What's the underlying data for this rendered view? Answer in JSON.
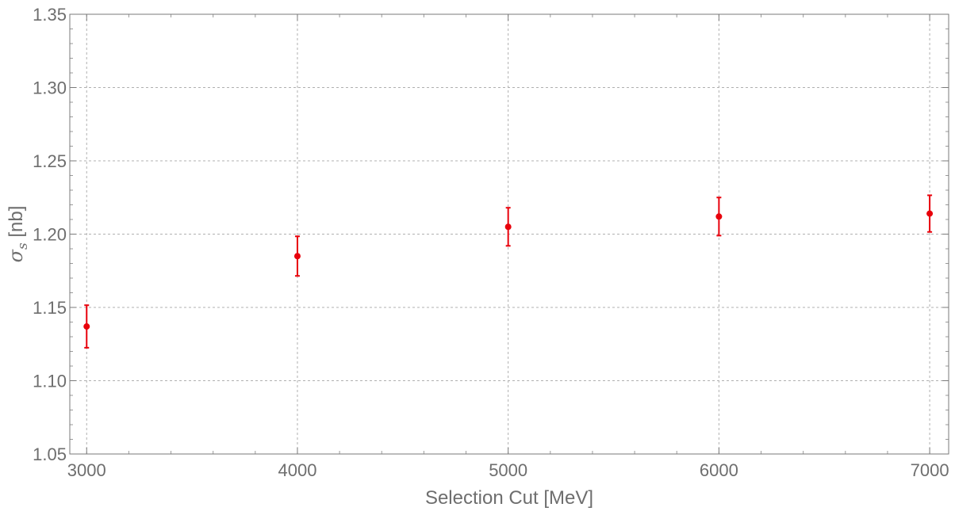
{
  "chart_data": {
    "type": "scatter",
    "title": "",
    "xlabel": "Selection Cut [MeV]",
    "ylabel": "σs [nb]",
    "ylabel_parts": {
      "symbol": "σ",
      "subscript": "s",
      "unit": " [nb]"
    },
    "xlim": [
      2920,
      7090
    ],
    "ylim": [
      1.05,
      1.35
    ],
    "x_ticks": [
      3000,
      4000,
      5000,
      6000,
      7000
    ],
    "x_tick_labels": [
      "3000",
      "4000",
      "5000",
      "6000",
      "7000"
    ],
    "y_ticks": [
      1.05,
      1.1,
      1.15,
      1.2,
      1.25,
      1.3,
      1.35
    ],
    "y_tick_labels": [
      "1.05",
      "1.10",
      "1.15",
      "1.20",
      "1.25",
      "1.30",
      "1.35"
    ],
    "grid": true,
    "series": [
      {
        "color": "#e8000b",
        "points": [
          {
            "x": 3000,
            "y": 1.137,
            "err": 0.0145
          },
          {
            "x": 4000,
            "y": 1.185,
            "err": 0.0135
          },
          {
            "x": 5000,
            "y": 1.205,
            "err": 0.013
          },
          {
            "x": 6000,
            "y": 1.212,
            "err": 0.013
          },
          {
            "x": 7000,
            "y": 1.214,
            "err": 0.0125
          }
        ]
      }
    ]
  }
}
